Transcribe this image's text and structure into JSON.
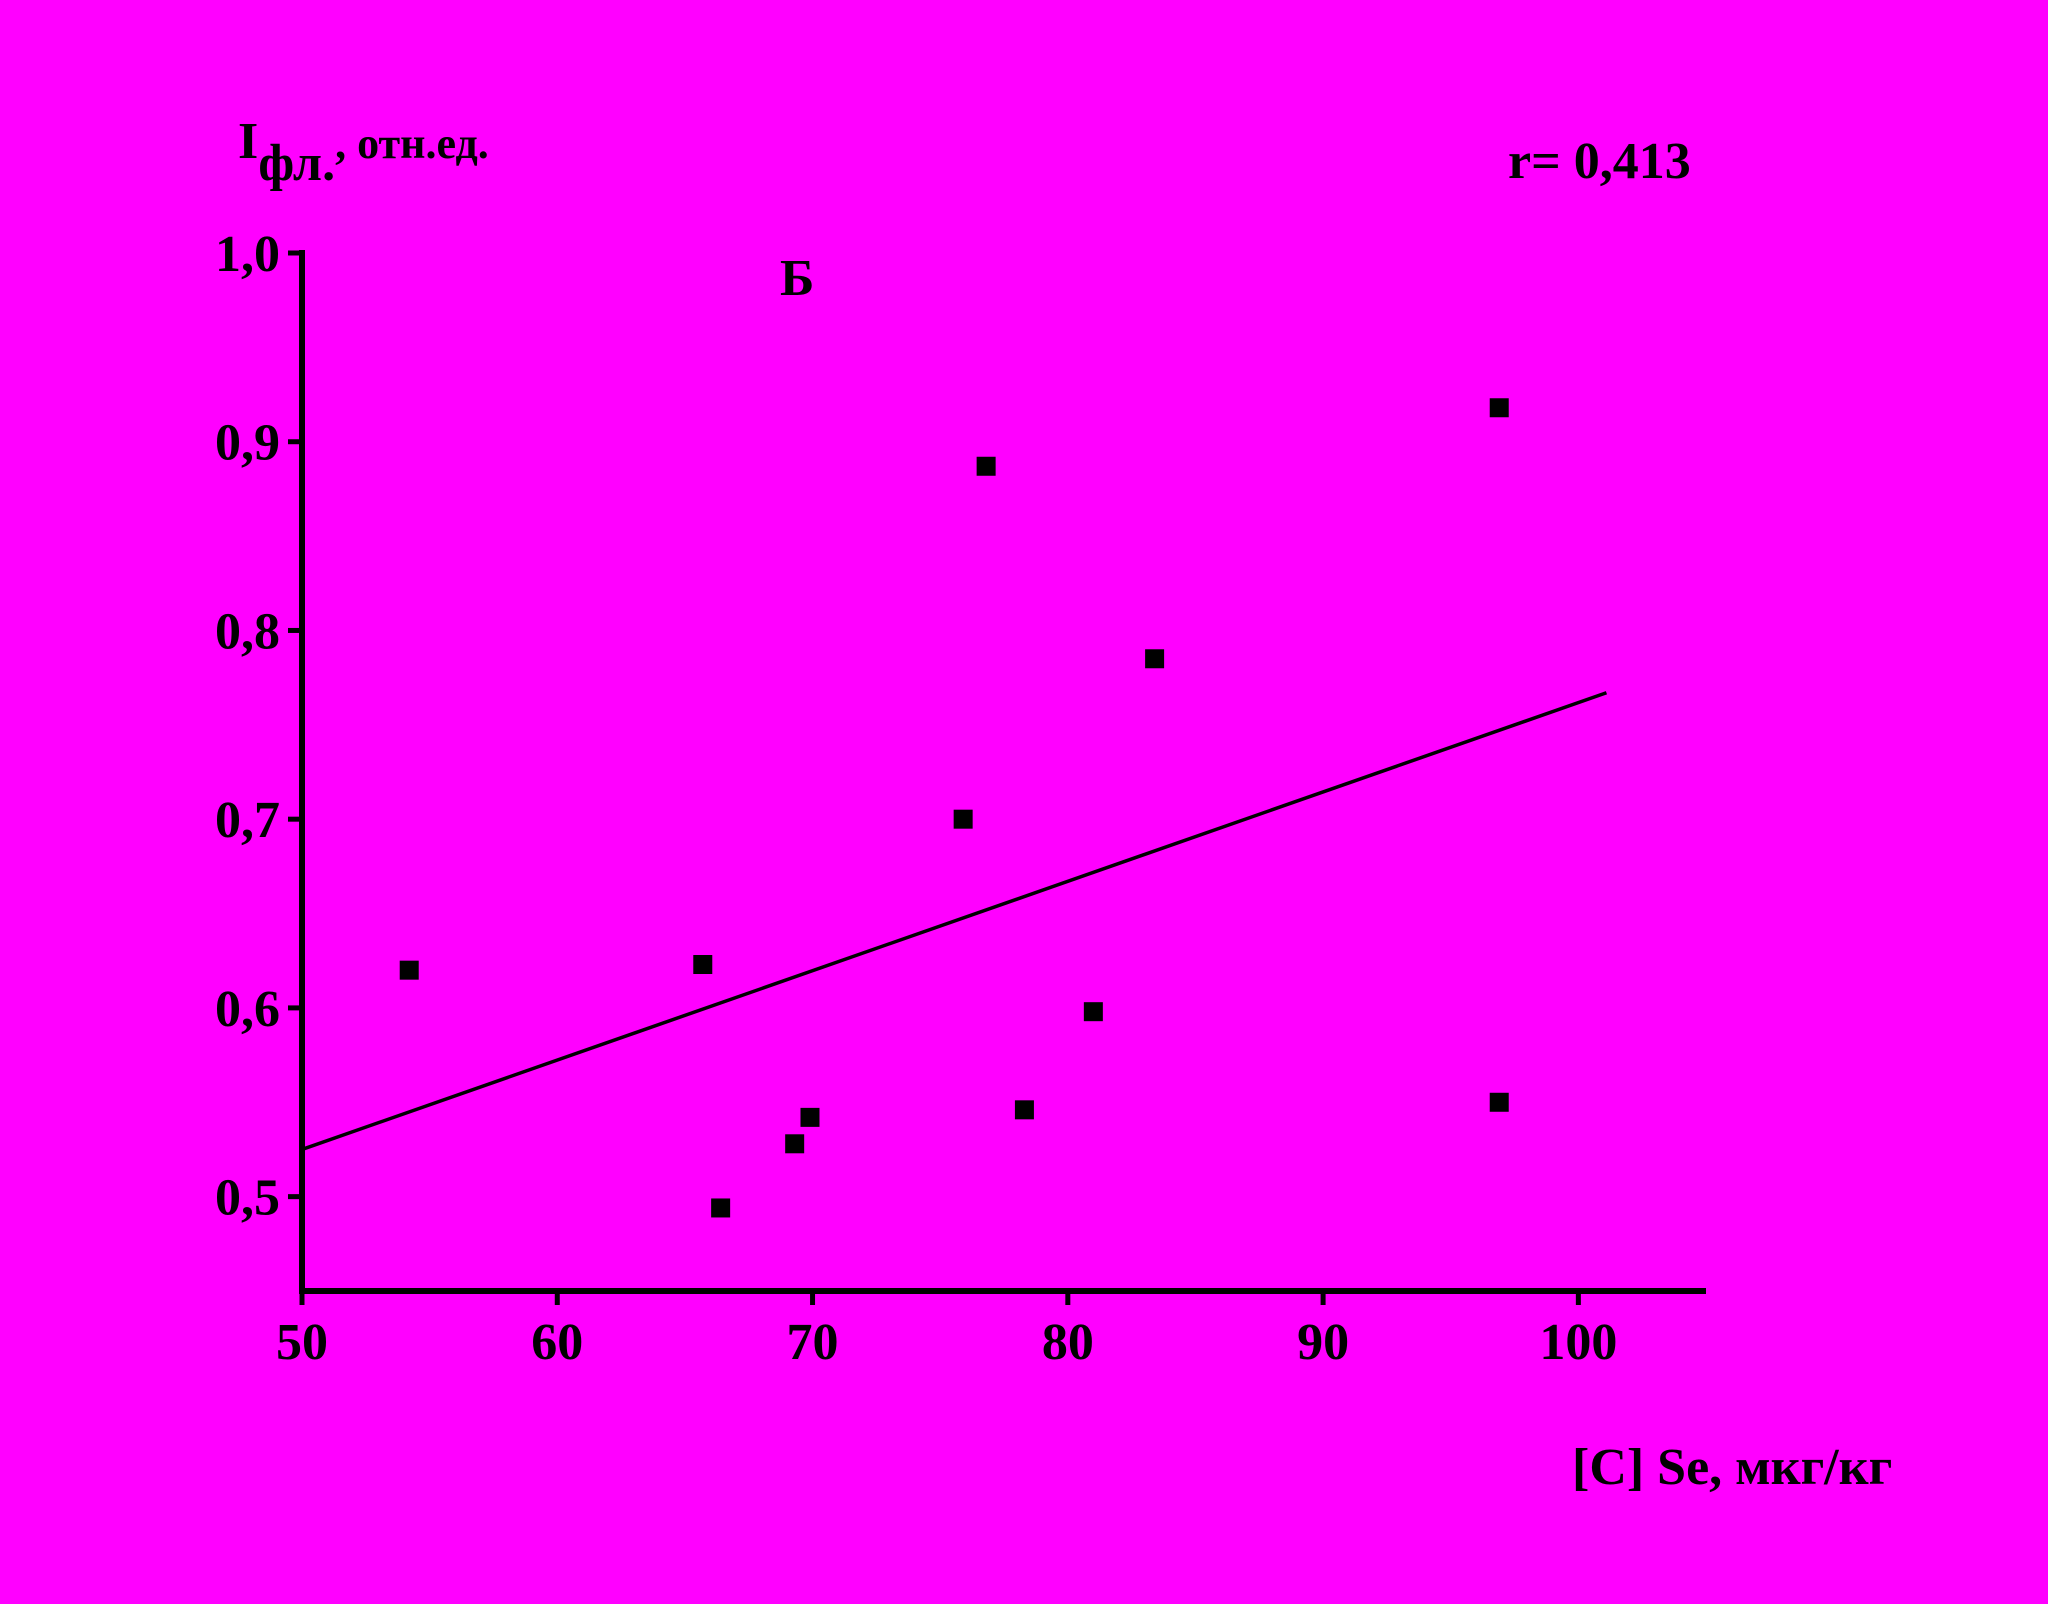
{
  "chart_data": {
    "type": "scatter",
    "panel_label": "Б",
    "annotation": "r= 0,413",
    "ylabel": {
      "main": "I",
      "sub": "фл.",
      "rest": ", отн.ед."
    },
    "xlabel": "[C] Se, мкг/кг",
    "xlim": [
      50,
      105
    ],
    "ylim": [
      0.45,
      1.0
    ],
    "xticks": [
      50,
      60,
      70,
      80,
      90,
      100
    ],
    "xtick_labels": [
      "50",
      "60",
      "70",
      "80",
      "90",
      "100"
    ],
    "yticks": [
      0.5,
      0.6,
      0.7,
      0.8,
      0.9,
      1.0
    ],
    "ytick_labels": [
      "0,5",
      "0,6",
      "0,7",
      "0,8",
      "0,9",
      "1,0"
    ],
    "grid": false,
    "series": [
      {
        "marker": "square",
        "color": "#000000",
        "points": [
          {
            "x": 54.2,
            "y": 0.62
          },
          {
            "x": 65.7,
            "y": 0.623
          },
          {
            "x": 66.4,
            "y": 0.494
          },
          {
            "x": 69.3,
            "y": 0.528
          },
          {
            "x": 69.9,
            "y": 0.542
          },
          {
            "x": 75.9,
            "y": 0.7
          },
          {
            "x": 76.8,
            "y": 0.887
          },
          {
            "x": 78.3,
            "y": 0.546
          },
          {
            "x": 81.0,
            "y": 0.598
          },
          {
            "x": 83.4,
            "y": 0.785
          },
          {
            "x": 96.9,
            "y": 0.918
          },
          {
            "x": 96.9,
            "y": 0.55
          }
        ]
      }
    ],
    "trendline": {
      "x": [
        50,
        101.1
      ],
      "y": [
        0.525,
        0.767
      ]
    }
  }
}
